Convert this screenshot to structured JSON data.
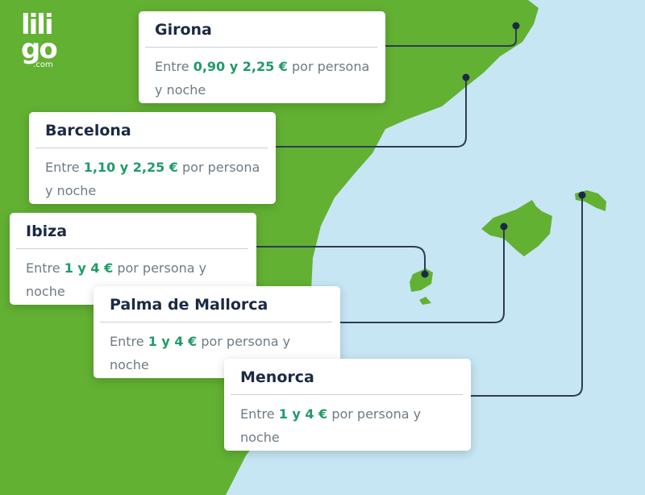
{
  "brand": {
    "logo_line1": "lili",
    "logo_line2": "go",
    "logo_domain": ".com"
  },
  "colors": {
    "land": "#62b133",
    "sea": "#c6e6f3",
    "title": "#1b2a44",
    "price": "#1f9b68",
    "text": "#6d7b86",
    "connector": "#2b3d55"
  },
  "destinations": [
    {
      "name": "Girona",
      "prefix": "Entre ",
      "price": "0,90 y 2,25 €",
      "suffix": " por persona y noche"
    },
    {
      "name": "Barcelona",
      "prefix": "Entre ",
      "price": "1,10 y 2,25 €",
      "suffix": " por persona y noche"
    },
    {
      "name": "Ibiza",
      "prefix": "Entre ",
      "price": "1 y 4 €",
      "suffix": " por persona y noche"
    },
    {
      "name": "Palma de Mallorca",
      "prefix": "Entre ",
      "price": "1 y 4 €",
      "suffix": " por persona y noche"
    },
    {
      "name": "Menorca",
      "prefix": "Entre ",
      "price": "1 y 4 €",
      "suffix": " por persona y noche"
    }
  ]
}
